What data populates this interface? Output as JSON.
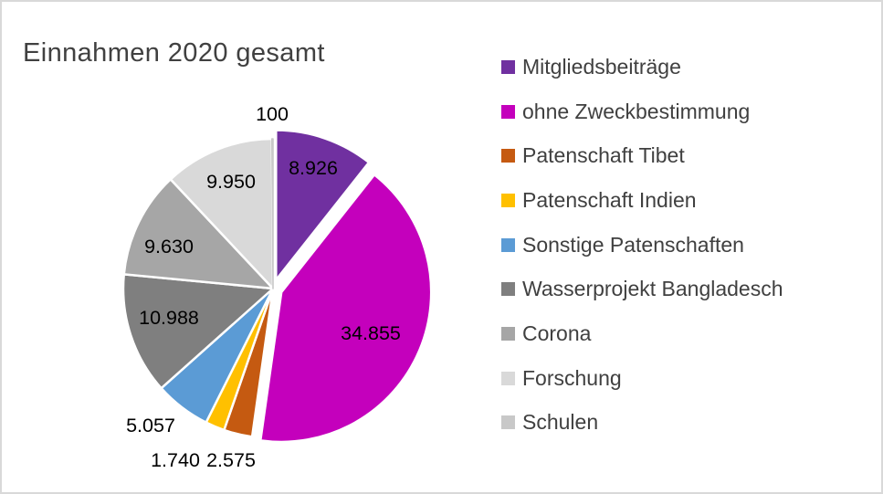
{
  "title": "Einnahmen 2020 gesamt",
  "colors": {
    "background": "#FFFFFF",
    "canvas_border": "#D9D9D9",
    "title_text": "#404040",
    "legend_text": "#404040",
    "data_label_text": "#000000",
    "slice_separator": "#FFFFFF"
  },
  "legend": {
    "position": "right",
    "items": [
      {
        "label": "Mitgliedsbeiträge",
        "color": "#7030A0"
      },
      {
        "label": "ohne Zweckbestimmung",
        "color": "#C400BC"
      },
      {
        "label": "Patenschaft Tibet",
        "color": "#C55A11"
      },
      {
        "label": "Patenschaft Indien",
        "color": "#FFC000"
      },
      {
        "label": "Sonstige Patenschaften",
        "color": "#5B9BD5"
      },
      {
        "label": "Wasserprojekt Bangladesch",
        "color": "#7F7F7F"
      },
      {
        "label": "Corona",
        "color": "#A6A6A6"
      },
      {
        "label": "Forschung",
        "color": "#D9D9D9"
      },
      {
        "label": "Schulen",
        "color": "#C8C8C8"
      }
    ]
  },
  "chart_data": {
    "type": "pie",
    "title": "Einnahmen 2020 gesamt",
    "categories": [
      "Mitgliedsbeiträge",
      "ohne Zweckbestimmung",
      "Patenschaft Tibet",
      "Patenschaft Indien",
      "Sonstige Patenschaften",
      "Wasserprojekt Bangladesch",
      "Corona",
      "Forschung",
      "Schulen"
    ],
    "values": [
      8926,
      34855,
      2575,
      1740,
      5057,
      10988,
      9630,
      9950,
      100
    ],
    "data_labels": [
      "8.926",
      "34.855",
      "2.575",
      "1.740",
      "5.057",
      "10.988",
      "9.630",
      "9.950",
      "100"
    ],
    "colors": [
      "#7030A0",
      "#C400BC",
      "#C55A11",
      "#FFC000",
      "#5B9BD5",
      "#7F7F7F",
      "#A6A6A6",
      "#D9D9D9",
      "#C8C8C8"
    ],
    "start_angle_deg": 0,
    "direction": "clockwise",
    "legend_position": "right",
    "exploded_slices": [
      "Mitgliedsbeiträge",
      "ohne Zweckbestimmung"
    ]
  }
}
